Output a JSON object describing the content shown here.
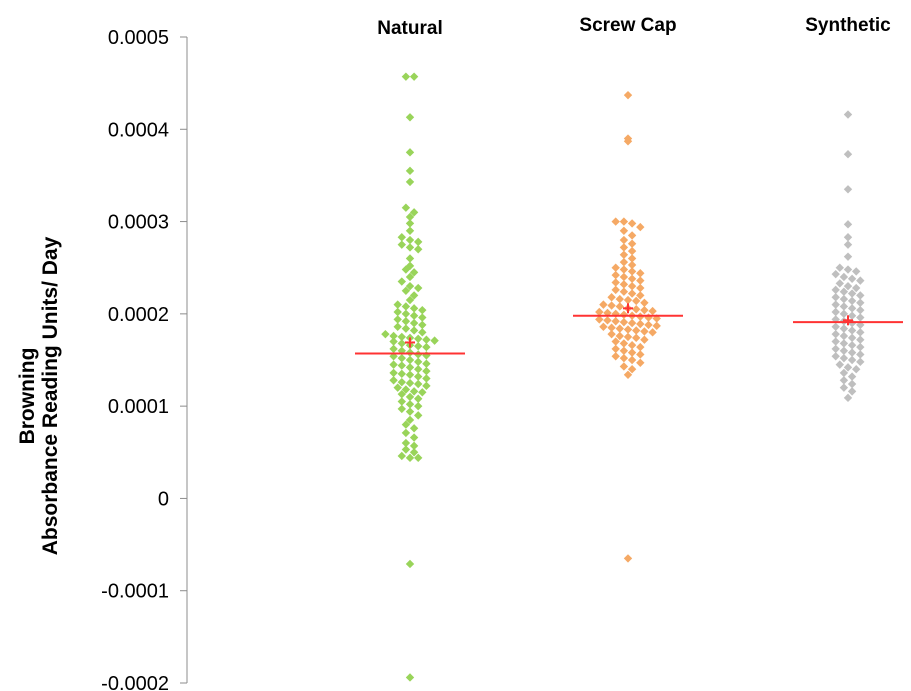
{
  "chart_data": {
    "type": "scatter",
    "subtype": "beeswarm",
    "ylabel_lines": [
      "Browning",
      "Absorbance Reading Units/ Day"
    ],
    "ylim": [
      -0.0002,
      0.0005
    ],
    "yticks": [
      {
        "value": 0.0005,
        "label": "0.0005"
      },
      {
        "value": 0.0004,
        "label": "0.0004"
      },
      {
        "value": 0.0003,
        "label": "0.0003"
      },
      {
        "value": 0.0002,
        "label": "0.0002"
      },
      {
        "value": 0.0001,
        "label": "0.0001"
      },
      {
        "value": 0,
        "label": "0"
      },
      {
        "value": -0.0001,
        "label": "-0.0001"
      },
      {
        "value": -0.0002,
        "label": "-0.0002"
      }
    ],
    "mean_marker_color": "#ff3333",
    "median_line_color": "#ff3333",
    "groups": [
      {
        "name": "Natural",
        "color": "#99d45a",
        "median": 0.000157,
        "mean": 0.000169,
        "values": [
          0.000457,
          0.000457,
          0.000413,
          0.000375,
          0.000355,
          0.000343,
          0.000315,
          0.00031,
          0.000305,
          0.000298,
          0.00029,
          0.000283,
          0.00028,
          0.000278,
          0.000275,
          0.000272,
          0.00027,
          0.00026,
          0.000252,
          0.000248,
          0.000245,
          0.00024,
          0.000235,
          0.00023,
          0.000228,
          0.000225,
          0.00022,
          0.000215,
          0.00021,
          0.000208,
          0.000206,
          0.000204,
          0.000202,
          0.0002,
          0.000198,
          0.000196,
          0.000194,
          0.000192,
          0.00019,
          0.000188,
          0.000186,
          0.000184,
          0.000182,
          0.00018,
          0.000178,
          0.000176,
          0.000175,
          0.000174,
          0.000173,
          0.000172,
          0.000171,
          0.00017,
          0.000168,
          0.000166,
          0.000165,
          0.000164,
          0.000162,
          0.00016,
          0.000158,
          0.000156,
          0.000155,
          0.000154,
          0.000152,
          0.00015,
          0.000148,
          0.000146,
          0.000145,
          0.000144,
          0.000142,
          0.00014,
          0.000138,
          0.000136,
          0.000135,
          0.000134,
          0.000132,
          0.00013,
          0.000128,
          0.000126,
          0.000125,
          0.000124,
          0.000122,
          0.00012,
          0.000118,
          0.000116,
          0.000115,
          0.000113,
          0.00011,
          0.000108,
          0.000105,
          0.000102,
          0.0001,
          9.7e-05,
          9.4e-05,
          9e-05,
          8.5e-05,
          8e-05,
          7.6e-05,
          7.1e-05,
          6.6e-05,
          6e-05,
          5.7e-05,
          5.3e-05,
          5e-05,
          4.6e-05,
          4.4e-05,
          4.4e-05,
          -7.1e-05,
          -0.000194
        ]
      },
      {
        "name": "Screw Cap",
        "color": "#f5a965",
        "median": 0.000198,
        "mean": 0.000206,
        "values": [
          0.000437,
          0.00039,
          0.000387,
          0.0003,
          0.0003,
          0.000298,
          0.000294,
          0.00029,
          0.000285,
          0.00028,
          0.000276,
          0.000272,
          0.000268,
          0.000264,
          0.00026,
          0.000256,
          0.000253,
          0.00025,
          0.000248,
          0.000246,
          0.000244,
          0.000242,
          0.00024,
          0.000238,
          0.000236,
          0.000234,
          0.000232,
          0.00023,
          0.000228,
          0.000226,
          0.000224,
          0.000222,
          0.00022,
          0.000218,
          0.000216,
          0.000215,
          0.000214,
          0.000212,
          0.00021,
          0.000209,
          0.000208,
          0.000206,
          0.000205,
          0.000204,
          0.000203,
          0.000202,
          0.000201,
          0.0002,
          0.000199,
          0.000198,
          0.000197,
          0.000196,
          0.000195,
          0.000194,
          0.000193,
          0.000192,
          0.000191,
          0.00019,
          0.000189,
          0.000188,
          0.000187,
          0.000186,
          0.000185,
          0.000184,
          0.000183,
          0.000182,
          0.000181,
          0.00018,
          0.000178,
          0.000176,
          0.000175,
          0.000174,
          0.000172,
          0.00017,
          0.000168,
          0.000166,
          0.000164,
          0.000162,
          0.00016,
          0.000158,
          0.000156,
          0.000154,
          0.000152,
          0.00015,
          0.000147,
          0.000143,
          0.00014,
          0.000134,
          -6.5e-05
        ]
      },
      {
        "name": "Synthetic",
        "color": "#bfbfbf",
        "median": 0.000191,
        "mean": 0.000193,
        "values": [
          0.000416,
          0.000373,
          0.000335,
          0.000297,
          0.000283,
          0.000275,
          0.000262,
          0.00025,
          0.000248,
          0.000246,
          0.000243,
          0.00024,
          0.000238,
          0.000236,
          0.000233,
          0.00023,
          0.000228,
          0.000226,
          0.000224,
          0.000222,
          0.00022,
          0.000218,
          0.000216,
          0.000214,
          0.000212,
          0.00021,
          0.000208,
          0.000206,
          0.000204,
          0.000202,
          0.0002,
          0.000198,
          0.000196,
          0.000194,
          0.000192,
          0.00019,
          0.000188,
          0.000186,
          0.000184,
          0.000182,
          0.00018,
          0.000178,
          0.000176,
          0.000174,
          0.000172,
          0.00017,
          0.000168,
          0.000166,
          0.000164,
          0.000162,
          0.00016,
          0.000158,
          0.000156,
          0.000154,
          0.000152,
          0.00015,
          0.000148,
          0.000145,
          0.000142,
          0.00014,
          0.000136,
          0.000132,
          0.000128,
          0.000124,
          0.00012,
          0.000116,
          0.000109
        ]
      }
    ]
  }
}
